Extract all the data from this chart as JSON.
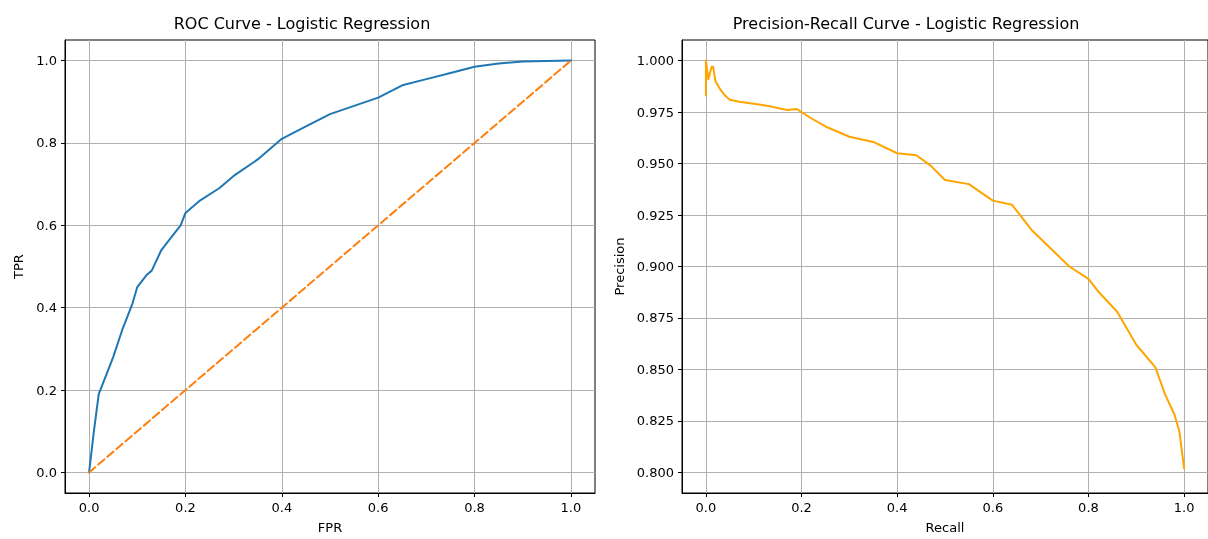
{
  "chart_data": [
    {
      "type": "line",
      "title": "ROC Curve - Logistic Regression",
      "xlabel": "FPR",
      "ylabel": "TPR",
      "grid": true,
      "marker": "none",
      "xlim": [
        -0.05,
        1.05
      ],
      "ylim": [
        -0.05,
        1.05
      ],
      "xticks": [
        {
          "value": 0,
          "label": "0.0"
        },
        {
          "value": 0.2,
          "label": "0.2"
        },
        {
          "value": 0.4,
          "label": "0.4"
        },
        {
          "value": 0.6,
          "label": "0.6"
        },
        {
          "value": 0.8,
          "label": "0.8"
        },
        {
          "value": 1,
          "label": "1.0"
        }
      ],
      "yticks": [
        {
          "value": 0,
          "label": "0.0"
        },
        {
          "value": 0.2,
          "label": "0.2"
        },
        {
          "value": 0.4,
          "label": "0.4"
        },
        {
          "value": 0.6,
          "label": "0.6"
        },
        {
          "value": 0.8,
          "label": "0.8"
        },
        {
          "value": 1,
          "label": "1.0"
        }
      ],
      "series": [
        {
          "color": "#1f77b4",
          "line_style": "solid",
          "x": [
            0,
            0.01,
            0.02,
            0.03,
            0.05,
            0.07,
            0.09,
            0.1,
            0.12,
            0.13,
            0.15,
            0.17,
            0.19,
            0.2,
            0.23,
            0.27,
            0.3,
            0.35,
            0.4,
            0.45,
            0.5,
            0.55,
            0.6,
            0.65,
            0.7,
            0.75,
            0.8,
            0.85,
            0.9,
            1
          ],
          "values": [
            0,
            0.1,
            0.19,
            0.22,
            0.28,
            0.35,
            0.41,
            0.45,
            0.48,
            0.49,
            0.54,
            0.57,
            0.6,
            0.63,
            0.66,
            0.69,
            0.72,
            0.76,
            0.81,
            0.84,
            0.87,
            0.89,
            0.91,
            0.94,
            0.955,
            0.97,
            0.985,
            0.993,
            0.998,
            1
          ]
        },
        {
          "color": "#ff7f0e",
          "line_style": "dashed",
          "x": [
            0,
            1
          ],
          "values": [
            0,
            1
          ]
        }
      ]
    },
    {
      "type": "line",
      "title": "Precision-Recall Curve - Logistic Regression",
      "xlabel": "Recall",
      "ylabel": "Precision",
      "grid": true,
      "marker": "none",
      "xlim": [
        -0.05,
        1.05
      ],
      "ylim": [
        0.79,
        1.01
      ],
      "xticks": [
        {
          "value": 0,
          "label": "0.0"
        },
        {
          "value": 0.2,
          "label": "0.2"
        },
        {
          "value": 0.4,
          "label": "0.4"
        },
        {
          "value": 0.6,
          "label": "0.6"
        },
        {
          "value": 0.8,
          "label": "0.8"
        },
        {
          "value": 1,
          "label": "1.0"
        }
      ],
      "yticks": [
        {
          "value": 0.8,
          "label": "0.800"
        },
        {
          "value": 0.825,
          "label": "0.825"
        },
        {
          "value": 0.85,
          "label": "0.850"
        },
        {
          "value": 0.875,
          "label": "0.875"
        },
        {
          "value": 0.9,
          "label": "0.900"
        },
        {
          "value": 0.925,
          "label": "0.925"
        },
        {
          "value": 0.95,
          "label": "0.950"
        },
        {
          "value": 0.975,
          "label": "0.975"
        },
        {
          "value": 1,
          "label": "1.000"
        }
      ],
      "series": [
        {
          "color": "#ffa500",
          "line_style": "solid",
          "x": [
            0,
            0,
            0.005,
            0.012,
            0.015,
            0.02,
            0.03,
            0.04,
            0.05,
            0.07,
            0.1,
            0.13,
            0.15,
            0.17,
            0.19,
            0.2,
            0.22,
            0.25,
            0.3,
            0.35,
            0.4,
            0.44,
            0.47,
            0.5,
            0.55,
            0.6,
            0.64,
            0.68,
            0.72,
            0.76,
            0.8,
            0.82,
            0.86,
            0.9,
            0.94,
            0.96,
            0.98,
            0.99,
            1
          ],
          "values": [
            0.983,
            1,
            0.991,
            0.997,
            0.997,
            0.99,
            0.986,
            0.983,
            0.981,
            0.98,
            0.979,
            0.978,
            0.977,
            0.976,
            0.9765,
            0.975,
            0.972,
            0.968,
            0.963,
            0.9605,
            0.955,
            0.954,
            0.949,
            0.942,
            0.94,
            0.932,
            0.93,
            0.918,
            0.909,
            0.9,
            0.894,
            0.888,
            0.878,
            0.862,
            0.851,
            0.838,
            0.828,
            0.82,
            0.802
          ]
        }
      ]
    }
  ]
}
